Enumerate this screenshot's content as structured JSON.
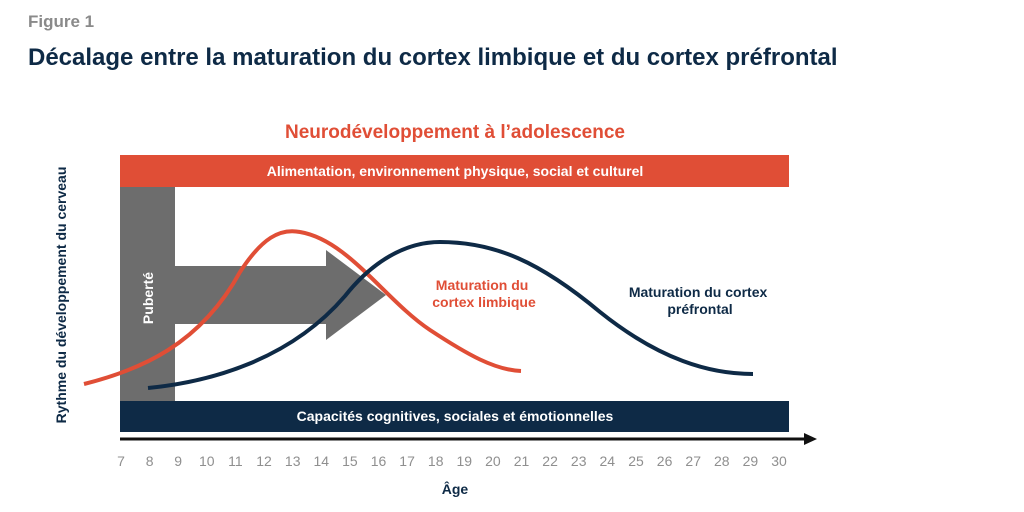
{
  "figure_label": "Figure 1",
  "title": "Décalage entre la maturation du cortex limbique et du cortex préfrontal",
  "diagram": {
    "heading": "Neurodéveloppement à l’adolescence",
    "top_band": "Alimentation, environnement physique, social et culturel",
    "bottom_band": "Capacités cognitives, sociales et émotionnelles",
    "puberty_label": "Puberté",
    "y_axis_label": "Rythme du développement du cerveau",
    "x_axis_label": "Âge",
    "limbic_label": [
      "Maturation du",
      "cortex limbique"
    ],
    "prefrontal_label": [
      "Maturation du cortex",
      "préfrontal"
    ],
    "x_ticks": [
      "7",
      "8",
      "9",
      "10",
      "11",
      "12",
      "13",
      "14",
      "15",
      "16",
      "17",
      "18",
      "19",
      "20",
      "21",
      "22",
      "23",
      "24",
      "25",
      "26",
      "27",
      "28",
      "29",
      "30"
    ],
    "colors": {
      "orange": "#e04e36",
      "navy": "#0e2a46",
      "gray": "#6d6d6d",
      "tick_gray": "#8f8f8f"
    }
  }
}
